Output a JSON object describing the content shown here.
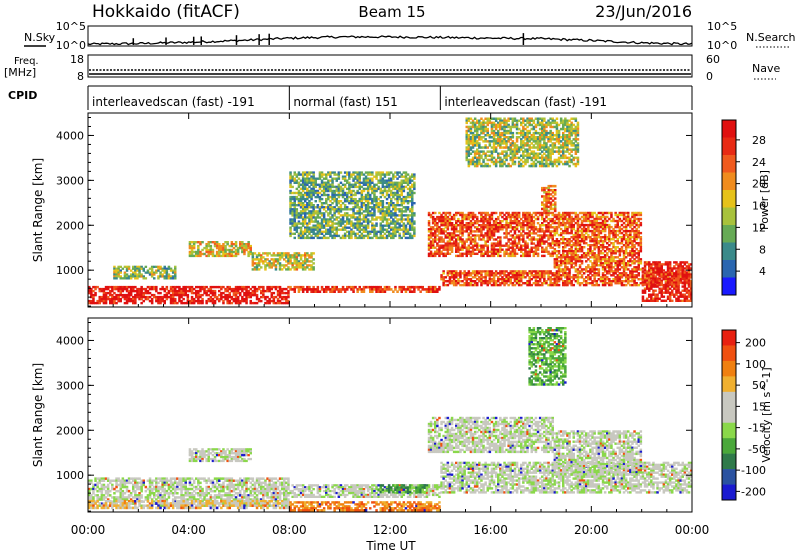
{
  "header": {
    "left": "Hokkaido (fitACF)",
    "center": "Beam 15",
    "right": "23/Jun/2016"
  },
  "chart_data": [
    {
      "type": "line",
      "name": "N.Sky / N.Search",
      "left_label": "N.Sky",
      "right_label": "N.Search",
      "left_ticks": [
        "10^5",
        "10^0"
      ],
      "right_ticks": [
        "10^5",
        "10^0"
      ],
      "x_range_hours": [
        0,
        24
      ],
      "profile_hours": [
        0,
        2,
        4,
        6,
        8,
        10,
        12,
        14,
        16,
        18,
        20,
        22,
        24
      ],
      "profile_level": [
        0.05,
        0.08,
        0.15,
        0.25,
        0.38,
        0.45,
        0.45,
        0.42,
        0.38,
        0.35,
        0.25,
        0.12,
        0.05
      ],
      "spikes_hours": [
        1.8,
        3.1,
        4.2,
        4.5,
        5.9,
        6.8,
        7.2,
        17.3
      ]
    },
    {
      "type": "line",
      "name": "Freq / Nave",
      "left_label": "Freq.",
      "left_unit": "[MHz]",
      "right_label": "Nave",
      "left_ticks": [
        "18",
        "8"
      ],
      "right_ticks": [
        "60",
        "0"
      ]
    },
    {
      "type": "table",
      "name": "CPID",
      "label": "CPID",
      "segments": [
        {
          "start_hour": 0,
          "end_hour": 8,
          "text": "interleavedscan (fast) -191"
        },
        {
          "start_hour": 8,
          "end_hour": 14,
          "text": "normal (fast) 151"
        },
        {
          "start_hour": 14,
          "end_hour": 24,
          "text": "interleavedscan (fast) -191"
        }
      ]
    },
    {
      "type": "heatmap",
      "name": "power",
      "ylabel": "Slant Range [km]",
      "yticks": [
        1000,
        2000,
        3000,
        4000
      ],
      "ylim": [
        180,
        4500
      ],
      "colorbar": {
        "label": "Power [dB]",
        "ticks": [
          4,
          8,
          12,
          16,
          20,
          24,
          28
        ],
        "colors": [
          "#1a1aff",
          "#2a66b0",
          "#3a8a8a",
          "#66aa55",
          "#a8c23c",
          "#e6c21a",
          "#f08c1e",
          "#f05a1e",
          "#e82a14",
          "#e01010"
        ]
      },
      "regions": [
        {
          "t0": 0.0,
          "t1": 8.0,
          "r0": 250,
          "r1": 650,
          "level": 0.95
        },
        {
          "t0": 8.0,
          "t1": 14.0,
          "r0": 500,
          "r1": 650,
          "level": 0.85
        },
        {
          "t0": 14.0,
          "t1": 24.0,
          "r0": 650,
          "r1": 1000,
          "level": 0.8
        },
        {
          "t0": 4.0,
          "t1": 6.5,
          "r0": 1300,
          "r1": 1650,
          "level": 0.55
        },
        {
          "t0": 6.5,
          "t1": 9.0,
          "r0": 1000,
          "r1": 1400,
          "level": 0.5
        },
        {
          "t0": 13.5,
          "t1": 18.5,
          "r0": 1300,
          "r1": 2300,
          "level": 0.8
        },
        {
          "t0": 18.0,
          "t1": 18.6,
          "r0": 2300,
          "r1": 2900,
          "level": 0.7
        },
        {
          "t0": 18.5,
          "t1": 22.0,
          "r0": 1000,
          "r1": 2300,
          "level": 0.75
        },
        {
          "t0": 22.0,
          "t1": 24.0,
          "r0": 300,
          "r1": 1200,
          "level": 0.9
        },
        {
          "t0": 8.0,
          "t1": 13.0,
          "r0": 1700,
          "r1": 3200,
          "level": 0.35
        },
        {
          "t0": 15.0,
          "t1": 19.5,
          "r0": 3300,
          "r1": 4400,
          "level": 0.45
        },
        {
          "t0": 1.0,
          "t1": 3.5,
          "r0": 800,
          "r1": 1100,
          "level": 0.4
        }
      ]
    },
    {
      "type": "heatmap",
      "name": "velocity",
      "ylabel": "Slant Range [km]",
      "yticks": [
        1000,
        2000,
        3000,
        4000
      ],
      "ylim": [
        180,
        4500
      ],
      "colorbar": {
        "label": "Velocity [m s^-1]",
        "ticks": [
          200,
          100,
          50,
          15,
          -15,
          -50,
          -100,
          -200
        ],
        "colors": [
          "#1a1ad0",
          "#2a52a0",
          "#2f7a4a",
          "#4aa83a",
          "#8ad84a",
          "#c8c8c0",
          "#c8c8c0",
          "#f0b030",
          "#f08010",
          "#f05010",
          "#e82010"
        ]
      },
      "regions": [
        {
          "t0": 0.0,
          "t1": 8.0,
          "r0": 300,
          "r1": 950,
          "level": 0.5
        },
        {
          "t0": 8.0,
          "t1": 14.0,
          "r0": 500,
          "r1": 800,
          "level": 0.5
        },
        {
          "t0": 14.0,
          "t1": 24.0,
          "r0": 600,
          "r1": 1300,
          "level": 0.5
        },
        {
          "t0": 4.0,
          "t1": 6.5,
          "r0": 1300,
          "r1": 1600,
          "level": 0.5
        },
        {
          "t0": 13.5,
          "t1": 18.5,
          "r0": 1500,
          "r1": 2300,
          "level": 0.5
        },
        {
          "t0": 18.5,
          "t1": 22.0,
          "r0": 1000,
          "r1": 2000,
          "level": 0.5
        },
        {
          "t0": 0.0,
          "t1": 8.0,
          "r0": 250,
          "r1": 450,
          "level": 0.65
        },
        {
          "t0": 8.0,
          "t1": 14.0,
          "r0": 200,
          "r1": 420,
          "level": 0.78
        },
        {
          "t0": 11.5,
          "t1": 13.5,
          "r0": 600,
          "r1": 800,
          "level": 0.3
        },
        {
          "t0": 17.5,
          "t1": 19.0,
          "r0": 3000,
          "r1": 4300,
          "level": 0.35
        }
      ]
    }
  ],
  "x_axis": {
    "label": "Time UT",
    "ticks": [
      "00:00",
      "04:00",
      "08:00",
      "12:00",
      "16:00",
      "20:00",
      "00:00"
    ],
    "range_hours": [
      0,
      24
    ]
  }
}
